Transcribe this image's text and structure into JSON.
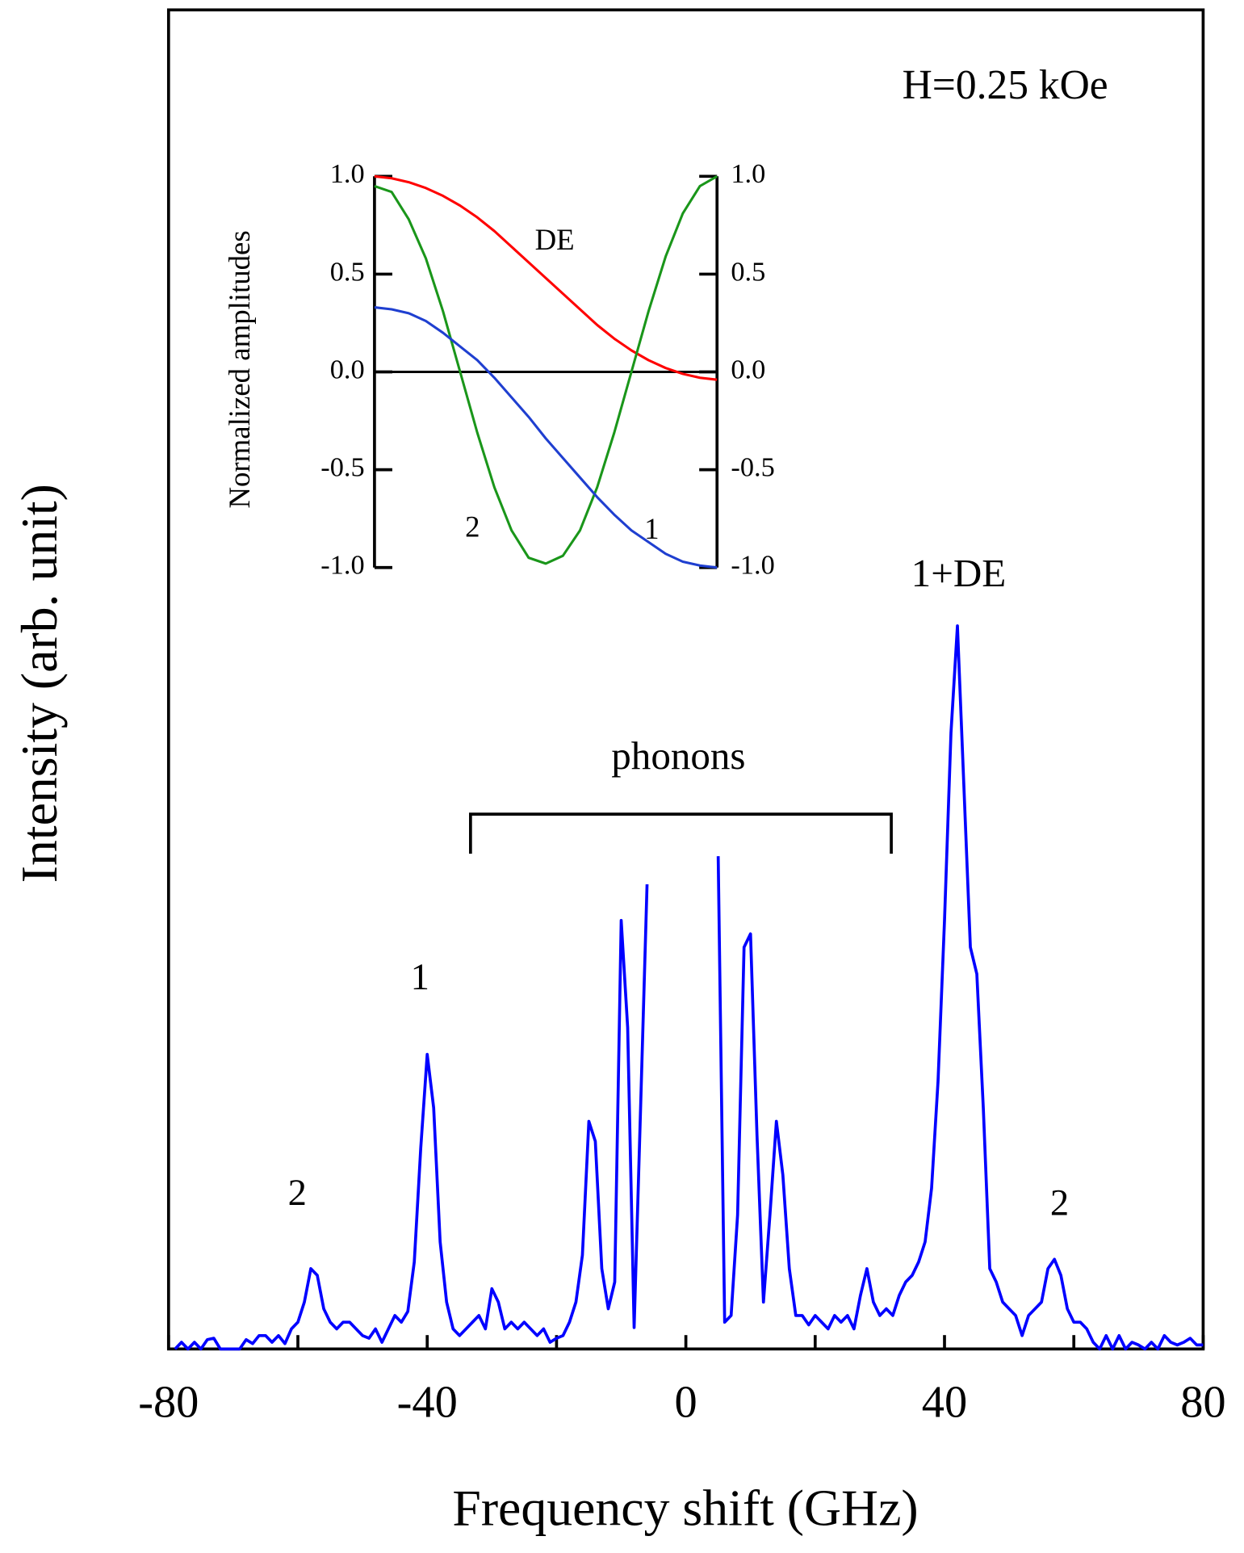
{
  "chart_data": [
    {
      "type": "line",
      "xlabel": "Frequency shift (GHz)",
      "ylabel": "Intensity (arb. unit)",
      "xlim": [
        -80,
        80
      ],
      "ylim": [
        0,
        100
      ],
      "xticks": [
        -80,
        -40,
        0,
        40,
        80
      ],
      "xminor_ticks": [
        -60,
        -20,
        20,
        60
      ],
      "annotations": [
        "H=0.25 kOe",
        "2",
        "1",
        "phonons",
        "1+DE",
        "2"
      ],
      "x": [
        -79,
        -78,
        -77,
        -76,
        -75,
        -74,
        -73,
        -72,
        -71,
        -70,
        -69,
        -68,
        -67,
        -66,
        -65,
        -64,
        -63,
        -62,
        -61,
        -60,
        -59,
        -58,
        -57,
        -56,
        -55,
        -54,
        -53,
        -52,
        -51,
        -50,
        -49,
        -48,
        -47,
        -46,
        -45,
        -44,
        -43,
        -42,
        -41,
        -40,
        -39,
        -38,
        -37,
        -36,
        -35,
        -34,
        -33,
        -32,
        -31,
        -30,
        -29,
        -28,
        -27,
        -26,
        -25,
        -24,
        -23,
        -22,
        -21,
        -20,
        -19,
        -18,
        -17,
        -16,
        -15,
        -14,
        -13,
        -12,
        -11,
        -10,
        -9,
        -8,
        -7,
        -6,
        -5,
        5,
        6,
        7,
        8,
        9,
        10,
        11,
        12,
        13,
        14,
        15,
        16,
        17,
        18,
        19,
        20,
        21,
        22,
        23,
        24,
        25,
        26,
        27,
        28,
        29,
        30,
        31,
        32,
        33,
        34,
        35,
        36,
        37,
        38,
        39,
        40,
        41,
        42,
        43,
        44,
        45,
        46,
        47,
        48,
        49,
        50,
        51,
        52,
        53,
        54,
        55,
        56,
        57,
        58,
        59,
        60,
        61,
        62,
        63,
        64,
        65,
        66,
        67,
        68,
        69,
        70,
        71,
        72,
        73,
        74,
        75,
        76,
        77,
        78,
        79,
        80
      ],
      "series": [
        {
          "color": "#0000ff",
          "values": [
            0,
            0.5,
            0,
            0.5,
            0,
            0.7,
            0.8,
            0,
            0,
            0,
            0,
            0.7,
            0.4,
            1,
            1,
            0.5,
            1,
            0.4,
            1.5,
            2,
            3.5,
            6,
            5.5,
            3,
            2,
            1.5,
            2,
            2,
            1.5,
            1,
            0.8,
            1.5,
            0.5,
            1.5,
            2.5,
            2,
            2.8,
            6.5,
            15,
            22,
            18,
            8,
            3.5,
            1.5,
            1,
            1.5,
            2,
            2.5,
            1.5,
            4.5,
            3.5,
            1.5,
            2,
            1.5,
            2,
            1.5,
            1,
            1.5,
            0.5,
            0.8,
            1,
            2,
            3.5,
            7,
            17,
            15.5,
            6,
            3,
            5,
            32,
            24,
            1.6,
            18,
            34.7,
            null,
            36.8,
            2,
            2.5,
            10,
            30,
            31,
            16,
            3.5,
            10,
            17,
            13,
            6,
            2.5,
            2.5,
            1.8,
            2.5,
            2,
            1.5,
            2.5,
            2,
            2.5,
            1.5,
            4,
            6,
            3.5,
            2.5,
            3,
            2.5,
            4,
            5,
            5.5,
            6.5,
            8,
            12,
            20,
            32,
            46,
            54,
            42,
            30,
            28,
            18,
            6,
            5,
            3.5,
            3,
            2.5,
            1,
            2.5,
            3,
            3.5,
            6,
            6.7,
            5.5,
            3,
            2,
            2,
            1.5,
            0.5,
            0,
            1,
            0,
            1,
            0,
            0.5,
            0.3,
            0,
            0.5,
            0,
            1,
            0.5,
            0.3,
            0.5,
            0.8,
            0.3,
            0.3
          ]
        }
      ]
    },
    {
      "type": "line",
      "ylabel": "Normalized amplitudes",
      "xlim": [
        0,
        1
      ],
      "ylim": [
        -1,
        1
      ],
      "y2lim": [
        -1,
        1
      ],
      "yticks": [
        {
          "value": -1,
          "label": "-1.0"
        },
        {
          "value": -0.5,
          "label": "-0.5"
        },
        {
          "value": 0,
          "label": "0.0"
        },
        {
          "value": 0.5,
          "label": "0.5"
        },
        {
          "value": 1,
          "label": "1.0"
        }
      ],
      "y2ticks": [
        {
          "value": -1,
          "label": "-1.0"
        },
        {
          "value": -0.5,
          "label": "-0.5"
        },
        {
          "value": 0,
          "label": "0.0"
        },
        {
          "value": 0.5,
          "label": "0.5"
        },
        {
          "value": 1,
          "label": "1.0"
        }
      ],
      "zero_line": true,
      "annotations": [
        "DE",
        "2",
        "1"
      ],
      "x": [
        0,
        0.05,
        0.1,
        0.15,
        0.2,
        0.25,
        0.3,
        0.35,
        0.4,
        0.45,
        0.5,
        0.55,
        0.6,
        0.65,
        0.7,
        0.75,
        0.8,
        0.85,
        0.9,
        0.95,
        1
      ],
      "series": [
        {
          "color": "#ff0000",
          "values": [
            1.0,
            0.99,
            0.97,
            0.94,
            0.9,
            0.85,
            0.79,
            0.72,
            0.64,
            0.56,
            0.48,
            0.4,
            0.32,
            0.24,
            0.17,
            0.11,
            0.06,
            0.02,
            -0.01,
            -0.03,
            -0.04
          ]
        },
        {
          "color": "#1a961a",
          "values": [
            0.95,
            0.92,
            0.78,
            0.58,
            0.31,
            0.0,
            -0.31,
            -0.59,
            -0.81,
            -0.95,
            -0.98,
            -0.94,
            -0.81,
            -0.59,
            -0.31,
            0.0,
            0.31,
            0.59,
            0.81,
            0.95,
            1.0
          ]
        },
        {
          "color": "#1f3fd0",
          "values": [
            0.33,
            0.32,
            0.3,
            0.26,
            0.2,
            0.13,
            0.06,
            -0.03,
            -0.13,
            -0.23,
            -0.34,
            -0.44,
            -0.54,
            -0.64,
            -0.73,
            -0.81,
            -0.87,
            -0.93,
            -0.97,
            -0.99,
            -1.0
          ]
        }
      ]
    }
  ]
}
